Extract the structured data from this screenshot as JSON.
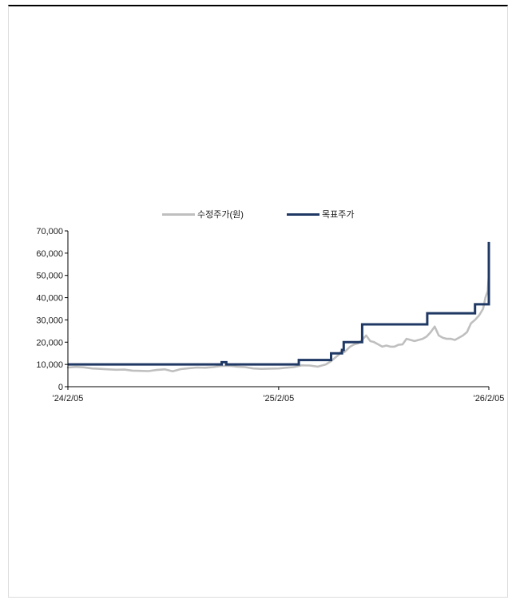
{
  "chart_data": {
    "type": "line",
    "title": "",
    "xlabel": "",
    "ylabel": "",
    "grid": false,
    "legend_position": "top-center",
    "ylim": [
      0,
      70000
    ],
    "yticks": [
      0,
      10000,
      20000,
      30000,
      40000,
      50000,
      60000,
      70000
    ],
    "ytick_labels": [
      "0",
      "10,000",
      "20,000",
      "30,000",
      "40,000",
      "50,000",
      "60,000",
      "70,000"
    ],
    "xlim": [
      "2024-02-05",
      "2026-02-05"
    ],
    "xticks": [
      "2024-02-05",
      "2025-02-05",
      "2026-02-05"
    ],
    "xtick_labels": [
      "'24/2/05",
      "'25/2/05",
      "'26/2/05"
    ],
    "series": [
      {
        "name": "수정주가(원)",
        "color": "#bfbfbf",
        "style": "line",
        "points": [
          [
            "2024-02-05",
            8600
          ],
          [
            "2024-02-19",
            8900
          ],
          [
            "2024-03-04",
            8700
          ],
          [
            "2024-03-18",
            8200
          ],
          [
            "2024-04-01",
            8000
          ],
          [
            "2024-04-15",
            7800
          ],
          [
            "2024-04-29",
            7600
          ],
          [
            "2024-05-13",
            7700
          ],
          [
            "2024-05-27",
            7200
          ],
          [
            "2024-06-10",
            7100
          ],
          [
            "2024-06-24",
            7000
          ],
          [
            "2024-07-08",
            7500
          ],
          [
            "2024-07-22",
            7800
          ],
          [
            "2024-08-05",
            6900
          ],
          [
            "2024-08-19",
            7900
          ],
          [
            "2024-09-02",
            8300
          ],
          [
            "2024-09-16",
            8600
          ],
          [
            "2024-09-30",
            8500
          ],
          [
            "2024-10-14",
            8800
          ],
          [
            "2024-10-28",
            9300
          ],
          [
            "2024-11-11",
            9400
          ],
          [
            "2024-11-25",
            9000
          ],
          [
            "2024-12-09",
            8800
          ],
          [
            "2024-12-23",
            8200
          ],
          [
            "2025-01-06",
            8000
          ],
          [
            "2025-01-20",
            8100
          ],
          [
            "2025-02-05",
            8200
          ],
          [
            "2025-02-17",
            8500
          ],
          [
            "2025-03-03",
            8800
          ],
          [
            "2025-03-17",
            9600
          ],
          [
            "2025-03-31",
            9500
          ],
          [
            "2025-04-14",
            9000
          ],
          [
            "2025-04-28",
            10000
          ],
          [
            "2025-05-07",
            11500
          ],
          [
            "2025-05-14",
            13000
          ],
          [
            "2025-05-21",
            14500
          ],
          [
            "2025-05-26",
            16500
          ],
          [
            "2025-05-30",
            15500
          ],
          [
            "2025-06-09",
            18000
          ],
          [
            "2025-06-16",
            19000
          ],
          [
            "2025-06-23",
            19500
          ],
          [
            "2025-06-30",
            21000
          ],
          [
            "2025-07-07",
            23000
          ],
          [
            "2025-07-14",
            20500
          ],
          [
            "2025-07-21",
            20000
          ],
          [
            "2025-07-28",
            19000
          ],
          [
            "2025-08-04",
            18000
          ],
          [
            "2025-08-11",
            18500
          ],
          [
            "2025-08-18",
            18000
          ],
          [
            "2025-08-25",
            18000
          ],
          [
            "2025-09-01",
            18800
          ],
          [
            "2025-09-08",
            19000
          ],
          [
            "2025-09-15",
            21500
          ],
          [
            "2025-09-22",
            21000
          ],
          [
            "2025-09-29",
            20500
          ],
          [
            "2025-10-06",
            21000
          ],
          [
            "2025-10-13",
            21500
          ],
          [
            "2025-10-20",
            22500
          ],
          [
            "2025-10-27",
            24500
          ],
          [
            "2025-11-03",
            27000
          ],
          [
            "2025-11-10",
            23000
          ],
          [
            "2025-11-17",
            22000
          ],
          [
            "2025-11-24",
            21500
          ],
          [
            "2025-12-01",
            21500
          ],
          [
            "2025-12-08",
            21000
          ],
          [
            "2025-12-15",
            22000
          ],
          [
            "2025-12-22",
            23000
          ],
          [
            "2025-12-29",
            24500
          ],
          [
            "2026-01-05",
            28500
          ],
          [
            "2026-01-12",
            30000
          ],
          [
            "2026-01-19",
            32000
          ],
          [
            "2026-01-26",
            35000
          ],
          [
            "2026-01-30",
            40000
          ],
          [
            "2026-02-03",
            43000
          ],
          [
            "2026-02-05",
            50000
          ]
        ]
      },
      {
        "name": "목표주가",
        "color": "#1f3864",
        "style": "step",
        "points": [
          [
            "2024-02-05",
            10000
          ],
          [
            "2024-10-29",
            11000
          ],
          [
            "2024-11-06",
            10000
          ],
          [
            "2025-03-12",
            12000
          ],
          [
            "2025-05-07",
            15000
          ],
          [
            "2025-05-26",
            16500
          ],
          [
            "2025-05-29",
            20000
          ],
          [
            "2025-06-30",
            28000
          ],
          [
            "2025-10-21",
            33000
          ],
          [
            "2026-01-12",
            37000
          ],
          [
            "2026-02-05",
            65000
          ]
        ]
      }
    ]
  },
  "colors": {
    "axis": "#000000",
    "top_rule": "#000000"
  }
}
